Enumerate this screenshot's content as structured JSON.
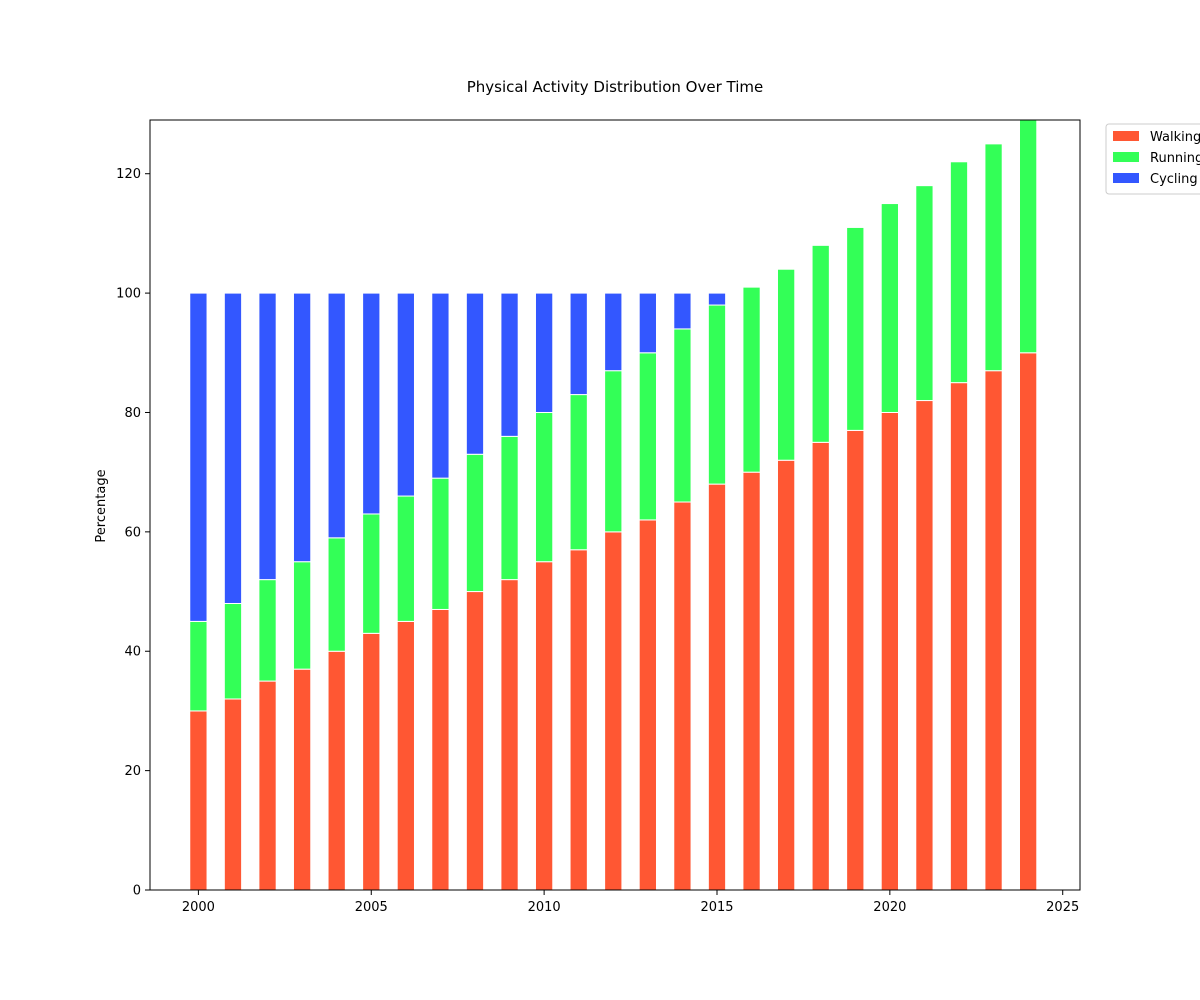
{
  "chart_data": {
    "type": "bar",
    "stacked": true,
    "title": "Physical Activity Distribution Over Time",
    "xlabel": "",
    "ylabel": "Percentage",
    "x": [
      2000,
      2001,
      2002,
      2003,
      2004,
      2005,
      2006,
      2007,
      2008,
      2009,
      2010,
      2011,
      2012,
      2013,
      2014,
      2015,
      2016,
      2017,
      2018,
      2019,
      2020,
      2021,
      2022,
      2023,
      2024
    ],
    "xlim": [
      1998.6,
      2025.5
    ],
    "ylim": [
      0,
      129
    ],
    "xticks": [
      2000,
      2005,
      2010,
      2015,
      2020,
      2025
    ],
    "yticks": [
      0,
      20,
      40,
      60,
      80,
      100,
      120
    ],
    "grid": false,
    "legend_position": "outside-top-right",
    "series": [
      {
        "name": "Walking",
        "color": "#ff5733",
        "values": [
          30,
          32,
          35,
          37,
          40,
          43,
          45,
          47,
          50,
          52,
          55,
          57,
          60,
          62,
          65,
          68,
          70,
          72,
          75,
          77,
          80,
          82,
          85,
          87,
          90
        ]
      },
      {
        "name": "Running",
        "color": "#33ff57",
        "values": [
          15,
          16,
          17,
          18,
          19,
          20,
          21,
          22,
          23,
          24,
          25,
          26,
          27,
          28,
          29,
          30,
          31,
          32,
          33,
          34,
          35,
          36,
          37,
          38,
          39
        ]
      },
      {
        "name": "Cycling",
        "color": "#3357ff",
        "values": [
          55,
          52,
          48,
          45,
          41,
          37,
          34,
          31,
          27,
          24,
          20,
          17,
          13,
          10,
          6,
          2,
          0,
          0,
          0,
          0,
          0,
          0,
          0,
          0,
          0
        ]
      }
    ]
  }
}
